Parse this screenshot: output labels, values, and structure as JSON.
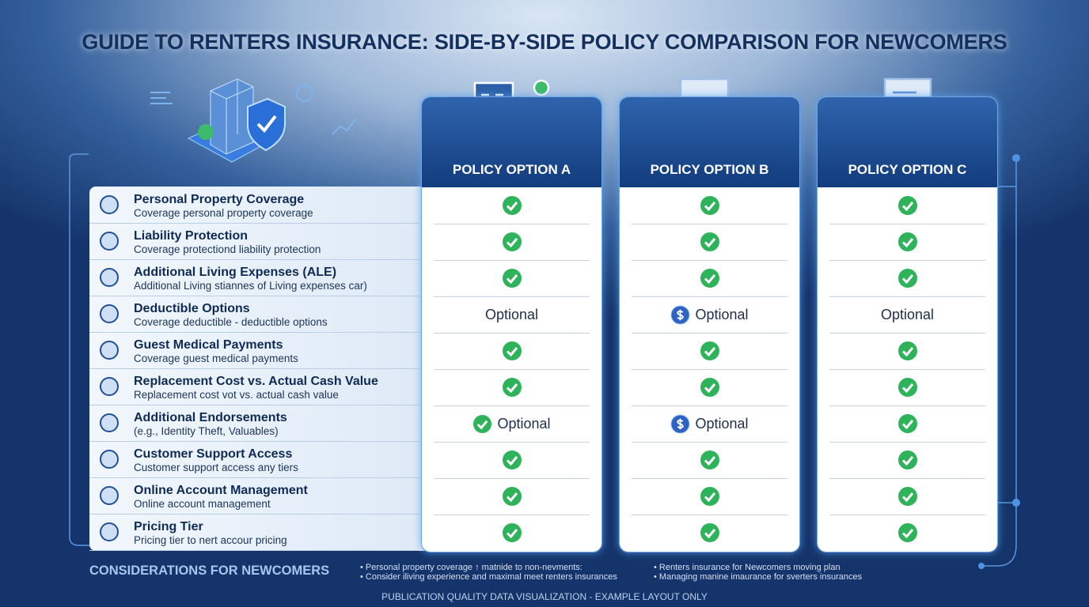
{
  "title": "GUIDE TO RENTERS INSURANCE: SIDE-BY-SIDE POLICY COMPARISON FOR NEWCOMERS",
  "options": [
    {
      "name": "POLICY OPTION A"
    },
    {
      "name": "POLICY OPTION B"
    },
    {
      "name": "POLICY OPTION C"
    }
  ],
  "rows": [
    {
      "feature": "Personal Property Coverage",
      "description": "Coverage personal property coverage",
      "cells": [
        {
          "icon": "check"
        },
        {
          "icon": "check"
        },
        {
          "icon": "check"
        }
      ]
    },
    {
      "feature": "Liability Protection",
      "description": "Coverage protectiond liability protection",
      "cells": [
        {
          "icon": "check"
        },
        {
          "icon": "check"
        },
        {
          "icon": "check"
        }
      ]
    },
    {
      "feature": "Additional Living Expenses (ALE)",
      "description": "Additional Living stiannes of Living expenses car)",
      "cells": [
        {
          "icon": "check"
        },
        {
          "icon": "check"
        },
        {
          "icon": "check"
        }
      ]
    },
    {
      "feature": "Deductible Options",
      "description": "Coverage deductible - deductible options",
      "cells": [
        {
          "text": "Optional"
        },
        {
          "icon": "dollar",
          "text": "Optional"
        },
        {
          "text": "Optional"
        }
      ]
    },
    {
      "feature": "Guest Medical Payments",
      "description": "Coverage guest medical payments",
      "cells": [
        {
          "icon": "check"
        },
        {
          "icon": "check"
        },
        {
          "icon": "check"
        }
      ]
    },
    {
      "feature": "Replacement Cost vs. Actual Cash Value",
      "description": "Replacement cost vot vs. actual cash value",
      "cells": [
        {
          "icon": "check"
        },
        {
          "icon": "check"
        },
        {
          "icon": "check"
        }
      ]
    },
    {
      "feature": "Additional Endorsements",
      "description": "(e.g., Identity Theft, Valuables)",
      "cells": [
        {
          "icon": "check",
          "text": "Optional"
        },
        {
          "icon": "dollar",
          "text": "Optional"
        },
        {
          "icon": "check"
        }
      ]
    },
    {
      "feature": "Customer Support Access",
      "description": "Customer support access any tiers",
      "cells": [
        {
          "icon": "check"
        },
        {
          "icon": "check"
        },
        {
          "icon": "check"
        }
      ]
    },
    {
      "feature": "Online Account Management",
      "description": "Online account management",
      "cells": [
        {
          "icon": "check"
        },
        {
          "icon": "check"
        },
        {
          "icon": "check"
        }
      ]
    },
    {
      "feature": "Pricing Tier",
      "description": "Pricing tier to nert accour pricing",
      "cells": [
        {
          "icon": "check"
        },
        {
          "icon": "check"
        },
        {
          "icon": "check"
        }
      ]
    }
  ],
  "considerations": {
    "heading": "CONSIDERATIONS FOR NEWCOMERS",
    "notes": [
      "Personal property coverage ↑ matnide to non-nevments:",
      "Consider iliving experience and maximal meet renters insurances",
      "Renters insurance for Newcomers moving plan",
      "Managing manine imaurance for sverters insurances"
    ]
  },
  "footer": "PUBLICATION QUALITY DATA VISUALIZATION - EXAMPLE LAYOUT ONLY"
}
